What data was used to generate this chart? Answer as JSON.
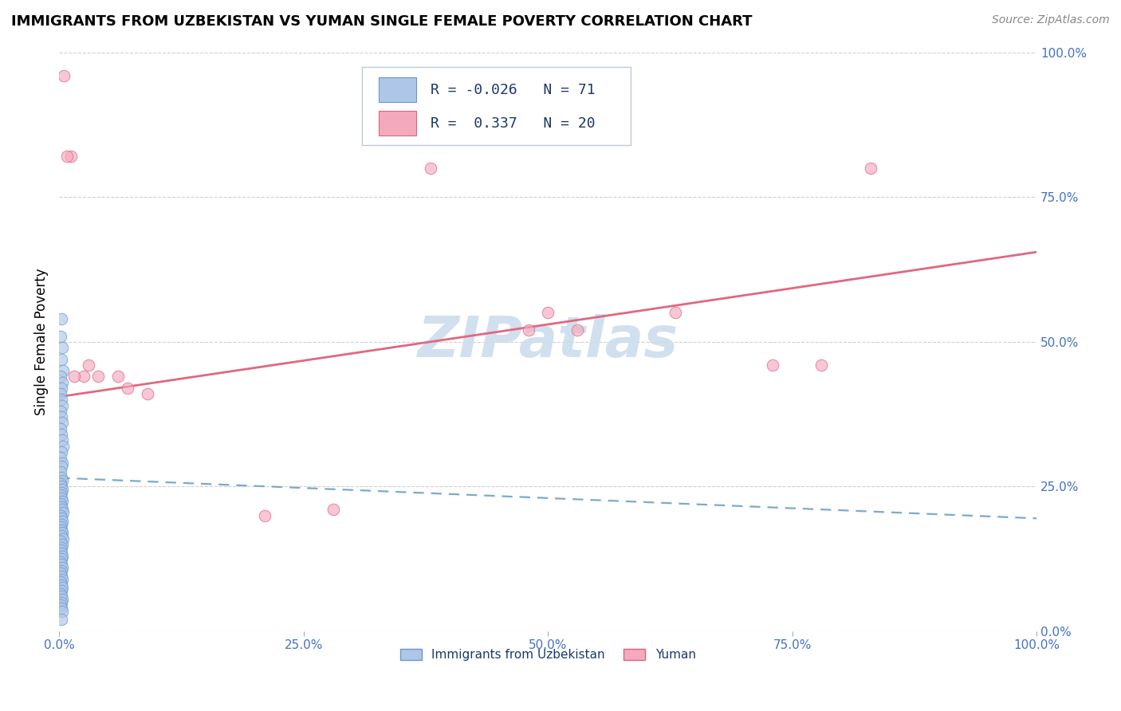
{
  "title": "IMMIGRANTS FROM UZBEKISTAN VS YUMAN SINGLE FEMALE POVERTY CORRELATION CHART",
  "source": "Source: ZipAtlas.com",
  "ylabel": "Single Female Poverty",
  "blue_R": "-0.026",
  "blue_N": "71",
  "pink_R": "0.337",
  "pink_N": "20",
  "blue_color": "#aec6e8",
  "pink_color": "#f4aabc",
  "blue_edge_color": "#6699cc",
  "pink_edge_color": "#e06080",
  "blue_line_color": "#7aaad0",
  "pink_line_color": "#e06880",
  "watermark_text": "ZIPatlas",
  "watermark_color": "#ccdded",
  "blue_scatter_x": [
    0.002,
    0.001,
    0.003,
    0.002,
    0.004,
    0.001,
    0.003,
    0.002,
    0.001,
    0.002,
    0.003,
    0.001,
    0.002,
    0.003,
    0.001,
    0.002,
    0.003,
    0.004,
    0.002,
    0.001,
    0.003,
    0.002,
    0.001,
    0.002,
    0.003,
    0.001,
    0.002,
    0.003,
    0.002,
    0.001,
    0.002,
    0.003,
    0.001,
    0.002,
    0.003,
    0.004,
    0.001,
    0.002,
    0.003,
    0.002,
    0.001,
    0.002,
    0.003,
    0.002,
    0.004,
    0.001,
    0.003,
    0.002,
    0.001,
    0.002,
    0.003,
    0.002,
    0.001,
    0.002,
    0.003,
    0.002,
    0.001,
    0.002,
    0.003,
    0.001,
    0.002,
    0.003,
    0.002,
    0.001,
    0.002,
    0.003,
    0.002,
    0.001,
    0.002,
    0.003,
    0.002
  ],
  "blue_scatter_y": [
    0.54,
    0.51,
    0.49,
    0.47,
    0.45,
    0.44,
    0.43,
    0.42,
    0.41,
    0.4,
    0.39,
    0.38,
    0.37,
    0.36,
    0.35,
    0.34,
    0.33,
    0.32,
    0.31,
    0.3,
    0.29,
    0.285,
    0.275,
    0.265,
    0.26,
    0.255,
    0.25,
    0.245,
    0.24,
    0.235,
    0.23,
    0.225,
    0.22,
    0.215,
    0.21,
    0.205,
    0.2,
    0.195,
    0.19,
    0.185,
    0.18,
    0.175,
    0.17,
    0.165,
    0.16,
    0.155,
    0.15,
    0.145,
    0.14,
    0.135,
    0.13,
    0.125,
    0.12,
    0.115,
    0.11,
    0.105,
    0.1,
    0.095,
    0.09,
    0.085,
    0.08,
    0.075,
    0.07,
    0.065,
    0.06,
    0.055,
    0.05,
    0.045,
    0.04,
    0.035,
    0.02
  ],
  "pink_scatter_x": [
    0.005,
    0.012,
    0.008,
    0.38,
    0.5,
    0.48,
    0.73,
    0.78,
    0.03,
    0.04,
    0.06,
    0.025,
    0.015,
    0.07,
    0.09,
    0.21,
    0.53,
    0.63,
    0.83,
    0.28
  ],
  "pink_scatter_y": [
    0.96,
    0.82,
    0.82,
    0.8,
    0.55,
    0.52,
    0.46,
    0.46,
    0.46,
    0.44,
    0.44,
    0.44,
    0.44,
    0.42,
    0.41,
    0.2,
    0.52,
    0.55,
    0.8,
    0.21
  ],
  "blue_line_x0": 0.0,
  "blue_line_x1": 1.0,
  "blue_line_y0": 0.265,
  "blue_line_y1": 0.195,
  "pink_line_x0": 0.0,
  "pink_line_x1": 1.0,
  "pink_line_y0": 0.405,
  "pink_line_y1": 0.655,
  "xlim": [
    0.0,
    1.0
  ],
  "ylim": [
    0.0,
    1.0
  ],
  "xticks": [
    0.0,
    0.25,
    0.5,
    0.75,
    1.0
  ],
  "xtick_labels": [
    "0.0%",
    "25.0%",
    "50.0%",
    "75.0%",
    "100.0%"
  ],
  "yticks": [
    0.0,
    0.25,
    0.5,
    0.75,
    1.0
  ],
  "ytick_labels_right": [
    "0.0%",
    "25.0%",
    "50.0%",
    "75.0%",
    "100.0%"
  ],
  "legend_blue_label": "Immigrants from Uzbekistan",
  "legend_pink_label": "Yuman",
  "tick_color": "#4472c4",
  "grid_color": "#d0d0d0",
  "bg_color": "#ffffff",
  "title_fontsize": 13,
  "source_fontsize": 10,
  "tick_fontsize": 11,
  "ylabel_fontsize": 12,
  "scatter_size": 110,
  "scatter_alpha": 0.65,
  "scatter_lw": 0.8
}
